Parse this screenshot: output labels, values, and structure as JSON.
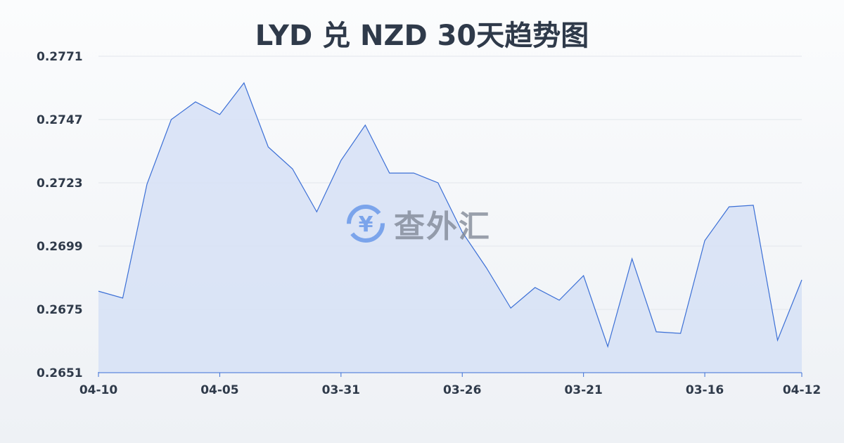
{
  "chart_data": {
    "type": "area",
    "title": "LYD 兑 NZD 30天趋势图",
    "xlabel": "",
    "ylabel": "",
    "x_tick_labels": [
      {
        "index": 0,
        "label": "04-10"
      },
      {
        "index": 5,
        "label": "04-05"
      },
      {
        "index": 10,
        "label": "03-31"
      },
      {
        "index": 15,
        "label": "03-26"
      },
      {
        "index": 20,
        "label": "03-21"
      },
      {
        "index": 25,
        "label": "03-16"
      },
      {
        "index": 29,
        "label": "04-12"
      }
    ],
    "y_ticks": [
      "0.2771",
      "0.2747",
      "0.2723",
      "0.2699",
      "0.2675",
      "0.2651"
    ],
    "ylim": [
      0.2651,
      0.2771
    ],
    "values": [
      0.26819,
      0.26793,
      0.27225,
      0.2747,
      0.27537,
      0.27489,
      0.27609,
      0.27366,
      0.27283,
      0.2712,
      0.27315,
      0.27449,
      0.27267,
      0.27267,
      0.2723,
      0.27043,
      0.26907,
      0.26755,
      0.26833,
      0.26785,
      0.26878,
      0.26609,
      0.26942,
      0.26665,
      0.26659,
      0.27011,
      0.27139,
      0.27145,
      0.26633,
      0.26862
    ],
    "grid": true,
    "line_color": "#3b6fd6",
    "fill_color": "#d6e1f6"
  },
  "watermark": {
    "text": "查外汇",
    "icon": "yen-exchange-icon"
  }
}
